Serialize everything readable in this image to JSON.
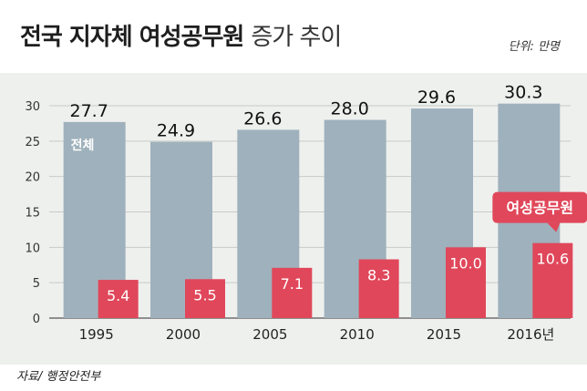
{
  "header": {
    "title_bold": "전국 지자체 여성공무원",
    "title_light": "증가 추이",
    "unit": "단위: 만명"
  },
  "source": "자료/ 행정안전부",
  "chart_data": {
    "type": "bar",
    "categories": [
      "1995",
      "2000",
      "2005",
      "2010",
      "2015",
      "2016년"
    ],
    "series": [
      {
        "name": "전체",
        "values": [
          27.7,
          24.9,
          26.6,
          28.0,
          29.6,
          30.3
        ],
        "color": "#9fb1bc"
      },
      {
        "name": "여성공무원",
        "values": [
          5.4,
          5.5,
          7.1,
          8.3,
          10.0,
          10.6
        ],
        "color": "#e0475a"
      }
    ],
    "value_labels_total": [
      "27.7",
      "24.9",
      "26.6",
      "28.0",
      "29.6",
      "30.3"
    ],
    "value_labels_female": [
      "5.4",
      "5.5",
      "7.1",
      "8.3",
      "10.0",
      "10.6"
    ],
    "yticks": [
      "0",
      "5",
      "10",
      "15",
      "20",
      "25",
      "30"
    ],
    "ylim": [
      0,
      30
    ],
    "grid": true,
    "legend": "inline"
  }
}
